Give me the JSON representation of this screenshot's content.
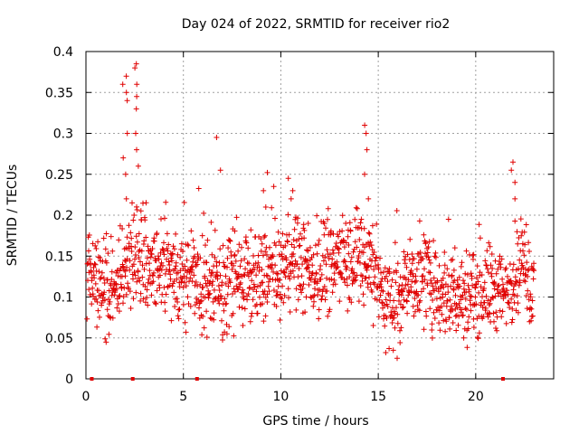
{
  "chart_data": {
    "type": "scatter",
    "title": "Day 024 of 2022, SRMTID for receiver rio2",
    "xlabel": "GPS time / hours",
    "ylabel": "SRMTID / TECUs",
    "xlim": [
      0,
      24
    ],
    "ylim": [
      0,
      0.4
    ],
    "xticks": [
      0,
      5,
      10,
      15,
      20
    ],
    "xtick_labels": [
      "0",
      "5",
      "10",
      "15",
      "20"
    ],
    "yticks": [
      0,
      0.05,
      0.1,
      0.15,
      0.2,
      0.25,
      0.3,
      0.35,
      0.4
    ],
    "ytick_labels": [
      "0",
      "0.05",
      "0.1",
      "0.15",
      "0.2",
      "0.25",
      "0.3",
      "0.35",
      "0.4"
    ],
    "grid": true,
    "marker": "plus",
    "color": "#e00000",
    "profile": {
      "hours": [
        0,
        0.5,
        1.0,
        1.5,
        2.0,
        2.5,
        3.0,
        3.5,
        4.0,
        4.5,
        5.0,
        5.5,
        6.0,
        6.5,
        7.0,
        7.5,
        8.0,
        8.5,
        9.0,
        9.5,
        10.0,
        10.5,
        11.0,
        11.5,
        12.0,
        12.5,
        13.0,
        13.5,
        14.0,
        14.5,
        15.0,
        15.5,
        16.0,
        16.5,
        17.0,
        17.5,
        18.0,
        18.5,
        19.0,
        19.5,
        20.0,
        20.5,
        21.0,
        21.5,
        22.0,
        22.5,
        23.0
      ],
      "typical": [
        0.13,
        0.12,
        0.11,
        0.11,
        0.13,
        0.15,
        0.14,
        0.13,
        0.14,
        0.13,
        0.12,
        0.12,
        0.11,
        0.12,
        0.11,
        0.12,
        0.12,
        0.12,
        0.12,
        0.13,
        0.13,
        0.14,
        0.14,
        0.13,
        0.13,
        0.14,
        0.15,
        0.15,
        0.15,
        0.15,
        0.12,
        0.09,
        0.1,
        0.12,
        0.12,
        0.12,
        0.11,
        0.11,
        0.1,
        0.1,
        0.11,
        0.11,
        0.11,
        0.1,
        0.13,
        0.14,
        0.1
      ]
    },
    "spikes": [
      {
        "x": 2.0,
        "values": [
          0.37,
          0.36,
          0.35,
          0.34,
          0.3,
          0.27,
          0.25,
          0.22
        ]
      },
      {
        "x": 2.6,
        "values": [
          0.385,
          0.38,
          0.36,
          0.345,
          0.33,
          0.3,
          0.28,
          0.26
        ]
      },
      {
        "x": 6.8,
        "values": [
          0.295,
          0.255
        ]
      },
      {
        "x": 9.2,
        "values": [
          0.252,
          0.23,
          0.21
        ]
      },
      {
        "x": 10.5,
        "values": [
          0.245,
          0.23,
          0.22
        ]
      },
      {
        "x": 14.4,
        "values": [
          0.31,
          0.3,
          0.28,
          0.25,
          0.22
        ]
      },
      {
        "x": 21.9,
        "values": [
          0.265,
          0.255,
          0.24,
          0.22
        ]
      }
    ],
    "zero_points_x": [
      0.3,
      2.4,
      5.7,
      21.4
    ]
  }
}
